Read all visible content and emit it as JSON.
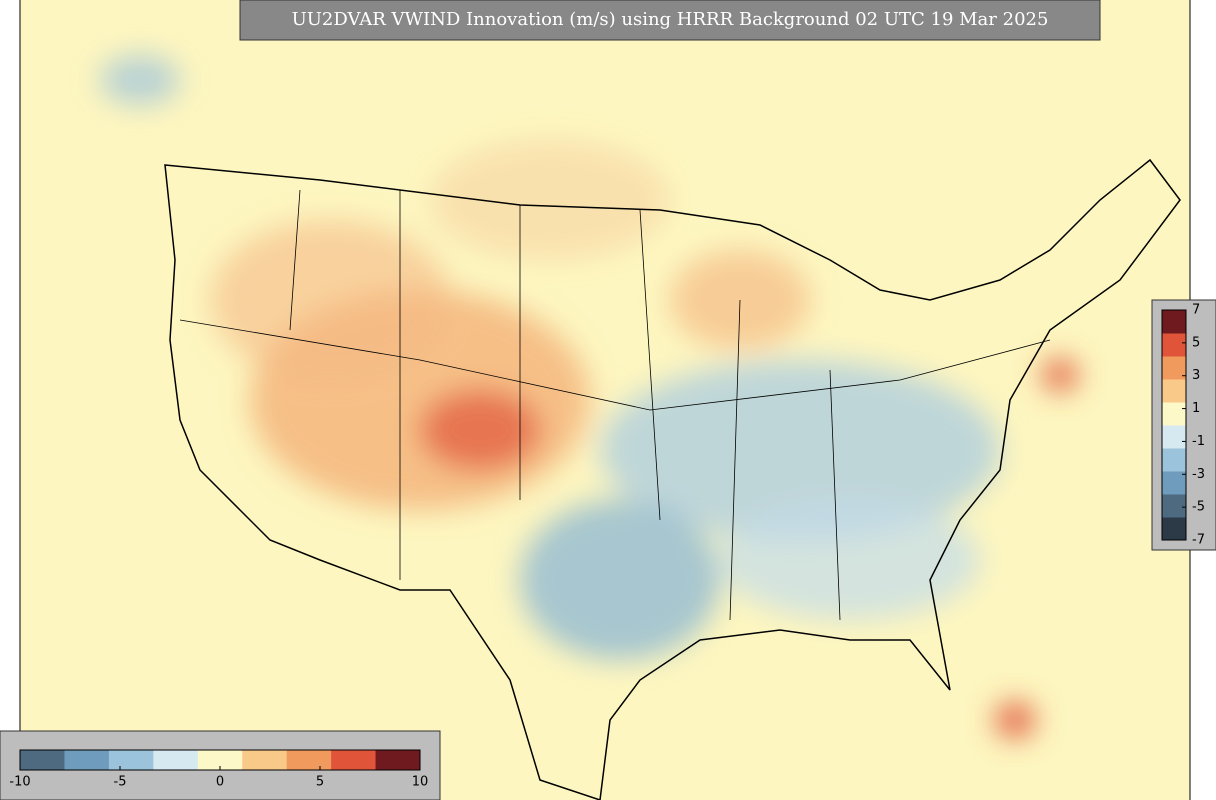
{
  "title": "UU2DVAR VWIND Innovation (m/s) using HRRR Background 02 UTC 19 Mar 2025",
  "colorbars": [
    {
      "orientation": "horizontal",
      "lim": [
        -10,
        10
      ],
      "ticks": [
        -10,
        -5,
        0,
        5,
        10
      ],
      "colors": [
        "#4d6a80",
        "#6f9bbd",
        "#9cc3dc",
        "#d6e8f0",
        "#fdf8c8",
        "#f9c98a",
        "#f19a5e",
        "#e0553a",
        "#6e1a1e"
      ]
    },
    {
      "orientation": "vertical",
      "lim": [
        -7,
        7
      ],
      "ticks": [
        7,
        5,
        3,
        1,
        -1,
        -3,
        -5,
        -7
      ],
      "colors": [
        "#2c3a48",
        "#4d6a80",
        "#6f9bbd",
        "#9cc3dc",
        "#d6e8f0",
        "#fdf8c8",
        "#f9c98a",
        "#f19a5e",
        "#e0553a",
        "#6e1a1e"
      ]
    }
  ]
}
